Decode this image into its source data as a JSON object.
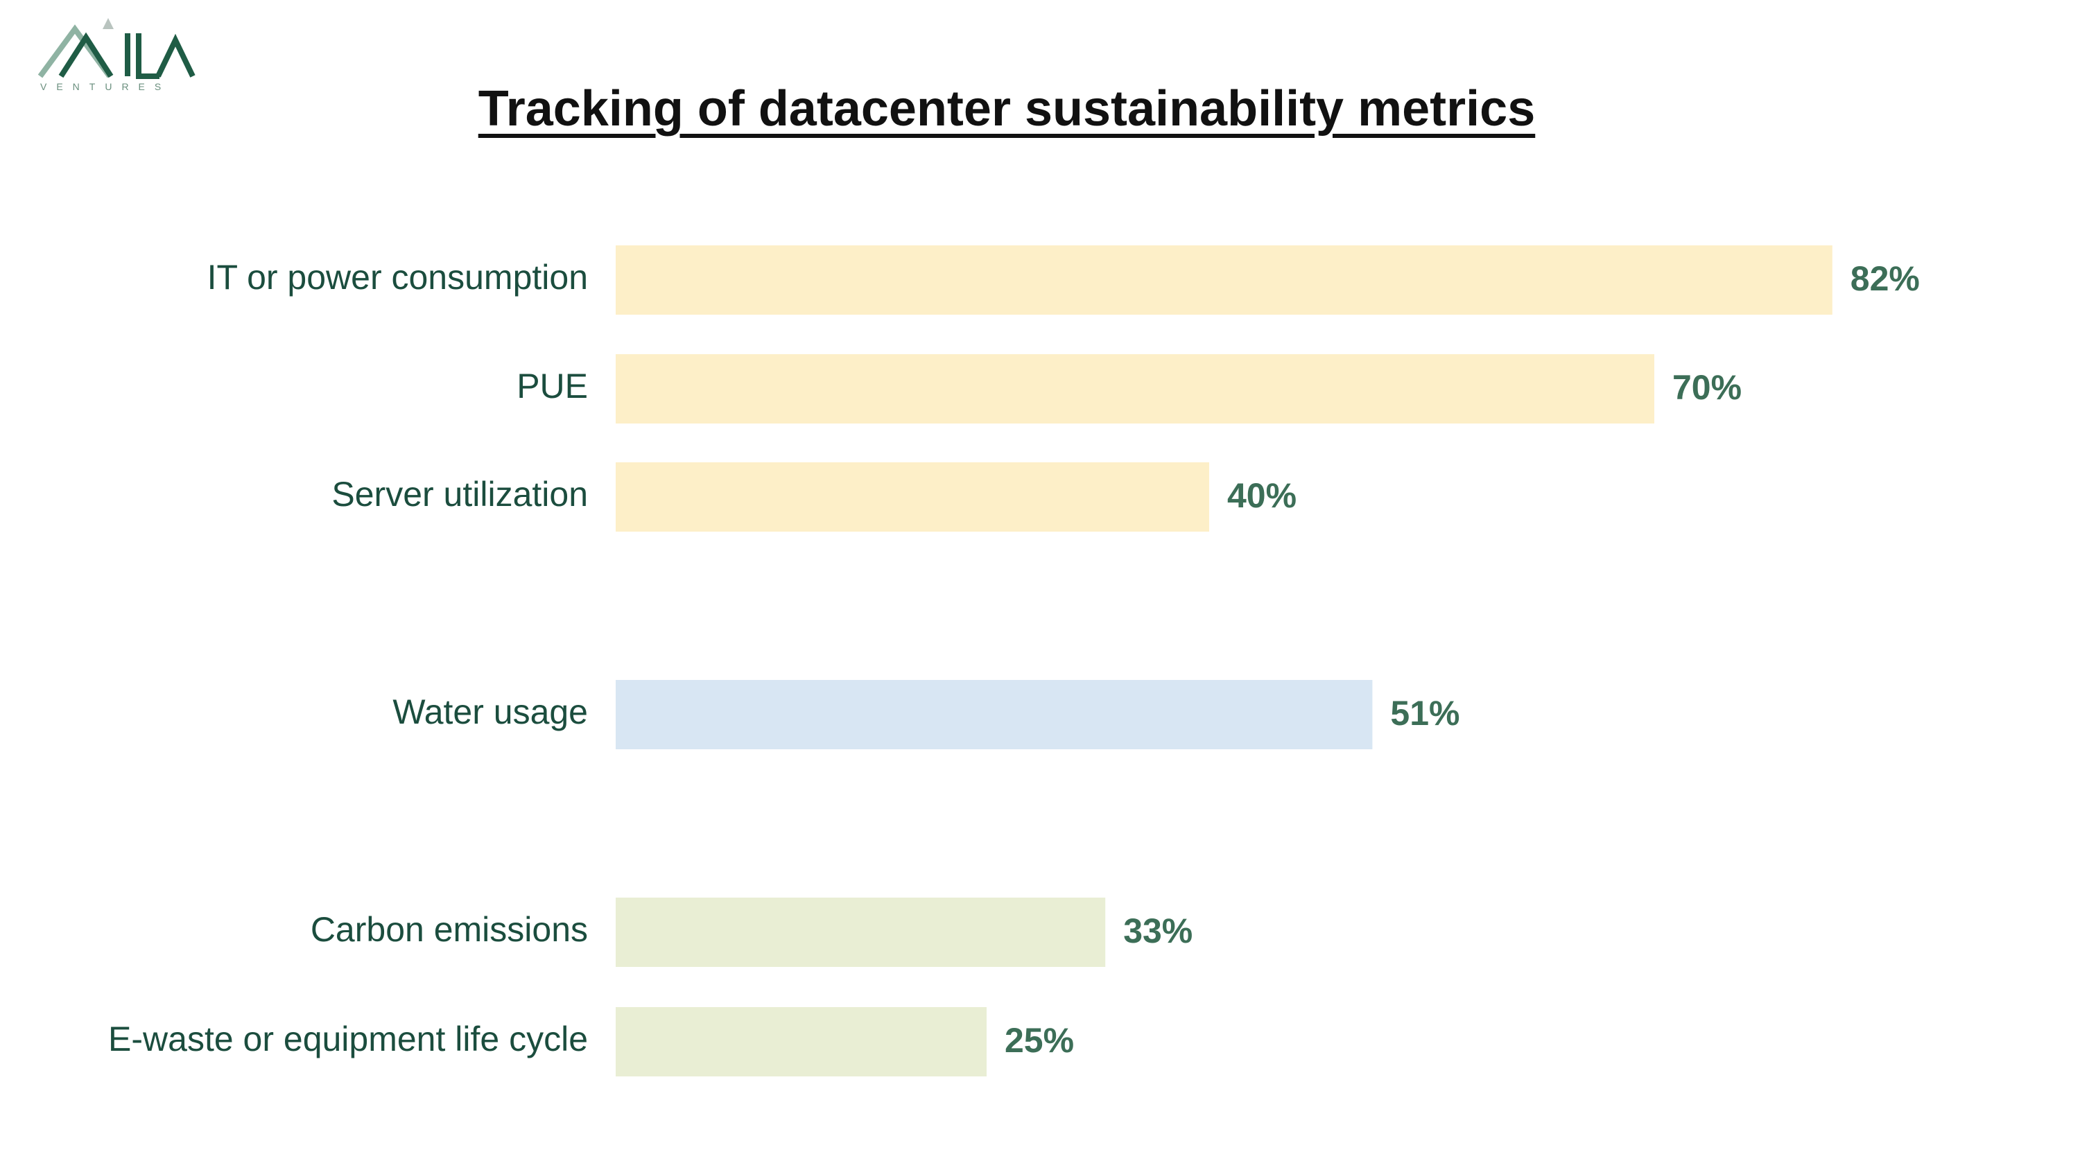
{
  "logo": {
    "wordmark": "AVILA",
    "subtitle": "VENTURES",
    "icon": "mountain-logo-icon",
    "colors": {
      "dark": "#1f5c45",
      "light": "#8fb3a3",
      "peak": "#b9c4bf"
    }
  },
  "chart_data": {
    "type": "bar",
    "orientation": "horizontal",
    "title": "Tracking of datacenter sustainability metrics",
    "xlabel": "",
    "ylabel": "",
    "xlim": [
      0,
      100
    ],
    "grid": false,
    "legend": "none",
    "categories": [
      "IT or power consumption",
      "PUE",
      "Server utilization",
      "Water usage",
      "Carbon emissions",
      "E-waste or equipment life cycle"
    ],
    "values": [
      82,
      70,
      40,
      51,
      33,
      25
    ],
    "value_labels": [
      "82%",
      "70%",
      "40%",
      "51%",
      "33%",
      "25%"
    ],
    "groups": [
      {
        "indices": [
          0,
          1,
          2
        ],
        "color": "#fdefc8"
      },
      {
        "indices": [
          3
        ],
        "color": "#d8e6f3"
      },
      {
        "indices": [
          4,
          5
        ],
        "color": "#e9eed4"
      }
    ]
  },
  "colors": {
    "category_label": "#1b4d3e",
    "value_label": "#3c6e57",
    "title": "#111111"
  }
}
